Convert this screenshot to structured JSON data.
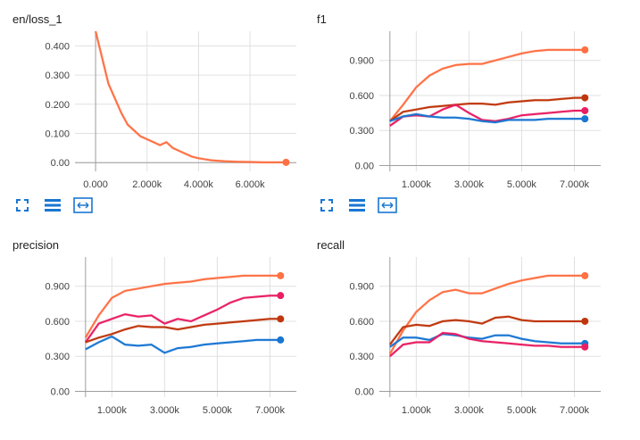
{
  "panels": [
    {
      "key": "loss",
      "title": "en/loss_1",
      "icons": [
        "fit-domain-icon",
        "toggle-y-log-icon",
        "toggle-expand-icon"
      ],
      "chart_data": {
        "type": "line",
        "title": "en/loss_1",
        "xlim": [
          -800,
          7800
        ],
        "ylim": [
          -0.03,
          0.45
        ],
        "xticks": [
          0,
          2000,
          4000,
          6000
        ],
        "xtick_labels": [
          "0.000",
          "2.000k",
          "4.000k",
          "6.000k"
        ],
        "yticks": [
          0,
          0.1,
          0.2,
          0.3,
          0.4
        ],
        "ytick_labels": [
          "0.00",
          "0.100",
          "0.200",
          "0.300",
          "0.400"
        ],
        "grid": true,
        "series": [
          {
            "color": "#ff7043",
            "x": [
              0,
              250,
              500,
              750,
              1000,
              1250,
              1500,
              1750,
              2000,
              2250,
              2500,
              2750,
              3000,
              3250,
              3500,
              3750,
              4000,
              4500,
              5000,
              5500,
              6000,
              6500,
              7000,
              7400
            ],
            "y": [
              0.45,
              0.36,
              0.27,
              0.22,
              0.17,
              0.13,
              0.11,
              0.09,
              0.08,
              0.07,
              0.06,
              0.07,
              0.05,
              0.04,
              0.03,
              0.02,
              0.015,
              0.008,
              0.005,
              0.003,
              0.002,
              0.001,
              0.001,
              0.001
            ]
          }
        ]
      }
    },
    {
      "key": "f1",
      "title": "f1",
      "icons": [
        "fit-domain-icon",
        "toggle-y-log-icon",
        "toggle-expand-icon"
      ],
      "chart_data": {
        "type": "line",
        "title": "f1",
        "xlim": [
          -400,
          8000
        ],
        "ylim": [
          -0.05,
          1.15
        ],
        "xticks": [
          1000,
          3000,
          5000,
          7000
        ],
        "xtick_labels": [
          "1.000k",
          "3.000k",
          "5.000k",
          "7.000k"
        ],
        "yticks": [
          0,
          0.3,
          0.6,
          0.9
        ],
        "ytick_labels": [
          "0.00",
          "0.300",
          "0.600",
          "0.900"
        ],
        "grid": true,
        "series": [
          {
            "color": "#ff7043",
            "x": [
              0,
              500,
              1000,
              1500,
              2000,
              2500,
              3000,
              3500,
              4000,
              4500,
              5000,
              5500,
              6000,
              6500,
              7000,
              7400
            ],
            "y": [
              0.38,
              0.52,
              0.67,
              0.77,
              0.83,
              0.86,
              0.87,
              0.87,
              0.9,
              0.93,
              0.96,
              0.98,
              0.99,
              0.99,
              0.99,
              0.99
            ]
          },
          {
            "color": "#bf360c",
            "x": [
              0,
              500,
              1000,
              1500,
              2000,
              2500,
              3000,
              3500,
              4000,
              4500,
              5000,
              5500,
              6000,
              6500,
              7000,
              7400
            ],
            "y": [
              0.38,
              0.46,
              0.48,
              0.5,
              0.51,
              0.52,
              0.53,
              0.53,
              0.52,
              0.54,
              0.55,
              0.56,
              0.56,
              0.57,
              0.58,
              0.58
            ]
          },
          {
            "color": "#e91e63",
            "x": [
              0,
              500,
              1000,
              1500,
              2000,
              2500,
              3000,
              3500,
              4000,
              4500,
              5000,
              5500,
              6000,
              6500,
              7000,
              7400
            ],
            "y": [
              0.34,
              0.42,
              0.43,
              0.42,
              0.48,
              0.52,
              0.45,
              0.39,
              0.38,
              0.4,
              0.43,
              0.44,
              0.45,
              0.46,
              0.47,
              0.47
            ]
          },
          {
            "color": "#1976d2",
            "x": [
              0,
              500,
              1000,
              1500,
              2000,
              2500,
              3000,
              3500,
              4000,
              4500,
              5000,
              5500,
              6000,
              6500,
              7000,
              7400
            ],
            "y": [
              0.38,
              0.42,
              0.44,
              0.42,
              0.41,
              0.41,
              0.4,
              0.38,
              0.37,
              0.39,
              0.39,
              0.39,
              0.4,
              0.4,
              0.4,
              0.4
            ]
          }
        ]
      }
    },
    {
      "key": "precision",
      "title": "precision",
      "icons": [
        "fit-domain-icon",
        "toggle-y-log-icon",
        "toggle-expand-icon"
      ],
      "chart_data": {
        "type": "line",
        "title": "precision",
        "xlim": [
          -400,
          8000
        ],
        "ylim": [
          -0.05,
          1.15
        ],
        "xticks": [
          1000,
          3000,
          5000,
          7000
        ],
        "xtick_labels": [
          "1.000k",
          "3.000k",
          "5.000k",
          "7.000k"
        ],
        "yticks": [
          0,
          0.3,
          0.6,
          0.9
        ],
        "ytick_labels": [
          "0.00",
          "0.300",
          "0.600",
          "0.900"
        ],
        "grid": true,
        "series": [
          {
            "color": "#ff7043",
            "x": [
              0,
              500,
              1000,
              1500,
              2000,
              2500,
              3000,
              3500,
              4000,
              4500,
              5000,
              5500,
              6000,
              6500,
              7000,
              7400
            ],
            "y": [
              0.46,
              0.65,
              0.8,
              0.86,
              0.88,
              0.9,
              0.92,
              0.93,
              0.94,
              0.96,
              0.97,
              0.98,
              0.99,
              0.99,
              0.99,
              0.99
            ]
          },
          {
            "color": "#e91e63",
            "x": [
              0,
              500,
              1000,
              1500,
              2000,
              2500,
              3000,
              3500,
              4000,
              4500,
              5000,
              5500,
              6000,
              6500,
              7000,
              7400
            ],
            "y": [
              0.42,
              0.58,
              0.62,
              0.66,
              0.64,
              0.65,
              0.58,
              0.62,
              0.6,
              0.65,
              0.7,
              0.76,
              0.8,
              0.81,
              0.82,
              0.82
            ]
          },
          {
            "color": "#bf360c",
            "x": [
              0,
              500,
              1000,
              1500,
              2000,
              2500,
              3000,
              3500,
              4000,
              4500,
              5000,
              5500,
              6000,
              6500,
              7000,
              7400
            ],
            "y": [
              0.42,
              0.46,
              0.49,
              0.53,
              0.56,
              0.55,
              0.55,
              0.53,
              0.55,
              0.57,
              0.58,
              0.59,
              0.6,
              0.61,
              0.62,
              0.62
            ]
          },
          {
            "color": "#1976d2",
            "x": [
              0,
              500,
              1000,
              1500,
              2000,
              2500,
              3000,
              3500,
              4000,
              4500,
              5000,
              5500,
              6000,
              6500,
              7000,
              7400
            ],
            "y": [
              0.36,
              0.42,
              0.47,
              0.4,
              0.39,
              0.4,
              0.33,
              0.37,
              0.38,
              0.4,
              0.41,
              0.42,
              0.43,
              0.44,
              0.44,
              0.44
            ]
          }
        ]
      }
    },
    {
      "key": "recall",
      "title": "recall",
      "icons": [
        "fit-domain-icon",
        "toggle-y-log-icon",
        "toggle-expand-icon"
      ],
      "chart_data": {
        "type": "line",
        "title": "recall",
        "xlim": [
          -400,
          8000
        ],
        "ylim": [
          -0.05,
          1.15
        ],
        "xticks": [
          1000,
          3000,
          5000,
          7000
        ],
        "xtick_labels": [
          "1.000k",
          "3.000k",
          "5.000k",
          "7.000k"
        ],
        "yticks": [
          0,
          0.3,
          0.6,
          0.9
        ],
        "ytick_labels": [
          "0.00",
          "0.300",
          "0.600",
          "0.900"
        ],
        "grid": true,
        "series": [
          {
            "color": "#ff7043",
            "x": [
              0,
              500,
              1000,
              1500,
              2000,
              2500,
              3000,
              3500,
              4000,
              4500,
              5000,
              5500,
              6000,
              6500,
              7000,
              7400
            ],
            "y": [
              0.32,
              0.52,
              0.68,
              0.78,
              0.85,
              0.87,
              0.84,
              0.84,
              0.88,
              0.92,
              0.95,
              0.97,
              0.99,
              0.99,
              0.99,
              0.99
            ]
          },
          {
            "color": "#bf360c",
            "x": [
              0,
              500,
              1000,
              1500,
              2000,
              2500,
              3000,
              3500,
              4000,
              4500,
              5000,
              5500,
              6000,
              6500,
              7000,
              7400
            ],
            "y": [
              0.4,
              0.55,
              0.57,
              0.56,
              0.6,
              0.61,
              0.6,
              0.58,
              0.63,
              0.64,
              0.61,
              0.6,
              0.6,
              0.6,
              0.6,
              0.6
            ]
          },
          {
            "color": "#1976d2",
            "x": [
              0,
              500,
              1000,
              1500,
              2000,
              2500,
              3000,
              3500,
              4000,
              4500,
              5000,
              5500,
              6000,
              6500,
              7000,
              7400
            ],
            "y": [
              0.38,
              0.46,
              0.46,
              0.44,
              0.49,
              0.48,
              0.46,
              0.45,
              0.48,
              0.48,
              0.45,
              0.43,
              0.42,
              0.41,
              0.41,
              0.41
            ]
          },
          {
            "color": "#e91e63",
            "x": [
              0,
              500,
              1000,
              1500,
              2000,
              2500,
              3000,
              3500,
              4000,
              4500,
              5000,
              5500,
              6000,
              6500,
              7000,
              7400
            ],
            "y": [
              0.3,
              0.4,
              0.42,
              0.42,
              0.5,
              0.49,
              0.45,
              0.43,
              0.42,
              0.41,
              0.4,
              0.39,
              0.39,
              0.38,
              0.38,
              0.38
            ]
          }
        ]
      }
    }
  ]
}
